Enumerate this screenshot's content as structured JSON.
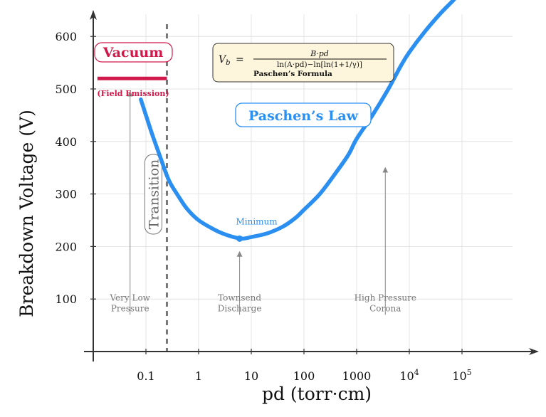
{
  "colors": {
    "curve": "#2a8ff0",
    "vacuum": "#d0184a",
    "transition_line": "#777777",
    "formula_box_fill": "#fdf6dc",
    "grid": "#dddddd",
    "annotation": "#888888"
  },
  "chart_data": {
    "type": "line",
    "title": "Paschen’s Law",
    "xlabel": "pd (torr·cm)",
    "ylabel": "Breakdown Voltage (V)",
    "x_scale": "log",
    "xlim": [
      0.01,
      1000000
    ],
    "ylim": [
      0,
      650
    ],
    "x_ticks": [
      {
        "value": 0.1,
        "label": "0.1"
      },
      {
        "value": 1,
        "label": "1"
      },
      {
        "value": 10,
        "label": "10"
      },
      {
        "value": 100,
        "label": "100"
      },
      {
        "value": 1000,
        "label": "1000"
      },
      {
        "value": 10000,
        "base": "10",
        "exp": "4"
      },
      {
        "value": 100000,
        "base": "10",
        "exp": "5"
      }
    ],
    "y_ticks": [
      100,
      200,
      300,
      400,
      500,
      600
    ],
    "grid": true,
    "series": [
      {
        "name": "",
        "color": "#2a8ff0",
        "x": [
          0.08,
          0.1,
          0.13,
          0.18,
          0.25,
          0.3,
          0.4,
          0.6,
          1,
          2,
          3,
          5,
          7,
          10,
          20,
          40,
          70,
          100,
          200,
          400,
          700,
          1000,
          2000,
          4000,
          7000,
          10000,
          20000,
          40000,
          70000,
          100000,
          150000
        ],
        "y": [
          480,
          450,
          415,
          375,
          335,
          318,
          298,
          272,
          250,
          232,
          224,
          217,
          215,
          218,
          225,
          238,
          255,
          270,
          300,
          340,
          375,
          405,
          450,
          500,
          545,
          570,
          610,
          645,
          670,
          690,
          705
        ]
      }
    ],
    "minimum": {
      "x": 6,
      "y": 215,
      "label": "Minimum"
    },
    "transition_x": 0.25,
    "vacuum_level": {
      "y": 520,
      "x_start": 0.012,
      "x_end": 0.25
    },
    "labels": {
      "vacuum": "Vacuum",
      "field_emission": "(Field Emission)",
      "transition": "Transition",
      "law": "Paschen’s Law"
    },
    "formula": {
      "lhs_v": "V",
      "lhs_sub": "b",
      "eq": "=",
      "numerator": "B·pd",
      "denominator": "ln(A·pd)−ln[ln(1+1/γ)]",
      "caption": "Paschen’s Formula"
    },
    "annotations": [
      {
        "lines": [
          "Very Low",
          "Pressure"
        ],
        "x": 0.05,
        "text_y": 105,
        "arrow_from": 70,
        "arrow_to": 495
      },
      {
        "lines": [
          "Townsend",
          "Discharge"
        ],
        "x": 6,
        "text_y": 105,
        "arrow_from": 70,
        "arrow_to": 190
      },
      {
        "lines": [
          "High Pressure",
          "Corona"
        ],
        "x": 3500,
        "text_y": 105,
        "arrow_from": 70,
        "arrow_to": 350
      }
    ]
  }
}
